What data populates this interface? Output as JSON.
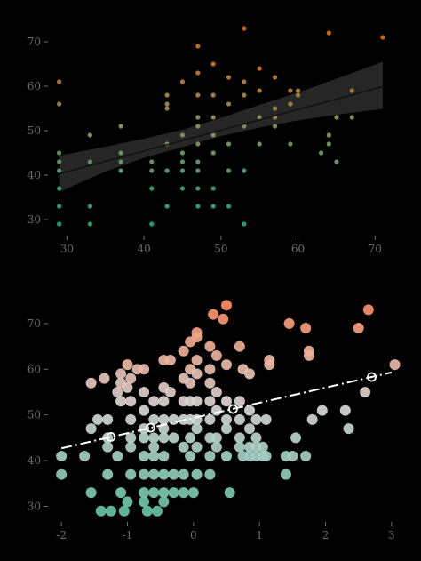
{
  "chart_data": [
    {
      "type": "scatter",
      "title": "",
      "xlabel": "",
      "ylabel": "",
      "xlim": [
        28,
        72.5
      ],
      "ylim": [
        27,
        75
      ],
      "x_ticks": [
        30,
        40,
        50,
        60,
        70
      ],
      "y_ticks": [
        30,
        40,
        50,
        60,
        70
      ],
      "grid": false,
      "color_scale": {
        "low": "#1b9e77",
        "mid": "#7f8c5a",
        "high": "#d95f02",
        "domain": [
          29,
          71
        ]
      },
      "trend": {
        "type": "linear",
        "x": [
          29,
          71
        ],
        "y": [
          40.3,
          59.9
        ],
        "color": "#111111"
      },
      "confidence_band": {
        "color": "#2a2a2a",
        "x": [
          29,
          35,
          40,
          45,
          50,
          55,
          60,
          65,
          71
        ],
        "lower": [
          36.2,
          40.8,
          43.9,
          46.3,
          48.8,
          50.7,
          52.3,
          53.6,
          54.9
        ],
        "upper": [
          44.4,
          46.4,
          48.2,
          50.2,
          52.9,
          55.8,
          58.6,
          61.7,
          65.5
        ]
      },
      "points": [
        {
          "x": 29,
          "y": 61
        },
        {
          "x": 29,
          "y": 56
        },
        {
          "x": 29,
          "y": 45
        },
        {
          "x": 29,
          "y": 43
        },
        {
          "x": 29,
          "y": 41
        },
        {
          "x": 29,
          "y": 37
        },
        {
          "x": 29,
          "y": 33
        },
        {
          "x": 29,
          "y": 29
        },
        {
          "x": 33,
          "y": 49
        },
        {
          "x": 33,
          "y": 43
        },
        {
          "x": 33,
          "y": 33
        },
        {
          "x": 33,
          "y": 29
        },
        {
          "x": 37,
          "y": 51
        },
        {
          "x": 37,
          "y": 45
        },
        {
          "x": 37,
          "y": 43
        },
        {
          "x": 37,
          "y": 41
        },
        {
          "x": 41,
          "y": 43
        },
        {
          "x": 41,
          "y": 41
        },
        {
          "x": 41,
          "y": 37
        },
        {
          "x": 41,
          "y": 29
        },
        {
          "x": 43,
          "y": 58
        },
        {
          "x": 43,
          "y": 56
        },
        {
          "x": 43,
          "y": 55
        },
        {
          "x": 43,
          "y": 47
        },
        {
          "x": 43,
          "y": 41
        },
        {
          "x": 43,
          "y": 33
        },
        {
          "x": 45,
          "y": 61
        },
        {
          "x": 45,
          "y": 49
        },
        {
          "x": 45,
          "y": 45
        },
        {
          "x": 45,
          "y": 43
        },
        {
          "x": 45,
          "y": 41
        },
        {
          "x": 45,
          "y": 37
        },
        {
          "x": 47,
          "y": 69
        },
        {
          "x": 47,
          "y": 63
        },
        {
          "x": 47,
          "y": 58
        },
        {
          "x": 47,
          "y": 53
        },
        {
          "x": 47,
          "y": 51
        },
        {
          "x": 47,
          "y": 47
        },
        {
          "x": 47,
          "y": 43
        },
        {
          "x": 47,
          "y": 41
        },
        {
          "x": 47,
          "y": 37
        },
        {
          "x": 47,
          "y": 33
        },
        {
          "x": 49,
          "y": 65
        },
        {
          "x": 49,
          "y": 58
        },
        {
          "x": 49,
          "y": 53
        },
        {
          "x": 49,
          "y": 49
        },
        {
          "x": 49,
          "y": 45
        },
        {
          "x": 49,
          "y": 37
        },
        {
          "x": 49,
          "y": 33
        },
        {
          "x": 51,
          "y": 62
        },
        {
          "x": 51,
          "y": 56
        },
        {
          "x": 51,
          "y": 47
        },
        {
          "x": 51,
          "y": 41
        },
        {
          "x": 51,
          "y": 33
        },
        {
          "x": 53,
          "y": 73
        },
        {
          "x": 53,
          "y": 61
        },
        {
          "x": 53,
          "y": 58
        },
        {
          "x": 53,
          "y": 51
        },
        {
          "x": 53,
          "y": 41
        },
        {
          "x": 53,
          "y": 29
        },
        {
          "x": 55,
          "y": 64
        },
        {
          "x": 55,
          "y": 59
        },
        {
          "x": 55,
          "y": 53
        },
        {
          "x": 55,
          "y": 47
        },
        {
          "x": 57,
          "y": 62
        },
        {
          "x": 57,
          "y": 55
        },
        {
          "x": 57,
          "y": 53
        },
        {
          "x": 57,
          "y": 51
        },
        {
          "x": 59,
          "y": 59
        },
        {
          "x": 59,
          "y": 56
        },
        {
          "x": 59,
          "y": 47
        },
        {
          "x": 60,
          "y": 59
        },
        {
          "x": 60,
          "y": 58
        },
        {
          "x": 63,
          "y": 45
        },
        {
          "x": 64,
          "y": 72
        },
        {
          "x": 64,
          "y": 49
        },
        {
          "x": 64,
          "y": 47
        },
        {
          "x": 65,
          "y": 53
        },
        {
          "x": 65,
          "y": 43
        },
        {
          "x": 67,
          "y": 59
        },
        {
          "x": 67,
          "y": 53
        },
        {
          "x": 71,
          "y": 71
        }
      ]
    },
    {
      "type": "scatter",
      "title": "",
      "xlabel": "",
      "ylabel": "",
      "xlim": [
        -2.15,
        3.15
      ],
      "ylim": [
        27,
        76
      ],
      "x_ticks": [
        -2,
        -1,
        0,
        1,
        2,
        3
      ],
      "y_ticks": [
        30,
        40,
        50,
        60,
        70
      ],
      "grid": false,
      "color_scale": {
        "low": "#66c2a5",
        "mid": "#d9d9d9",
        "high": "#fc8d62",
        "domain": [
          29,
          74
        ]
      },
      "trend": {
        "type": "linear",
        "style": "dash-dot",
        "x": [
          -2,
          3
        ],
        "y": [
          42.7,
          59.3
        ],
        "color": "#ffffff"
      },
      "trend_markers": [
        {
          "x": -1.25,
          "y": 45.2
        },
        {
          "x": -0.65,
          "y": 47.2
        },
        {
          "x": 0.6,
          "y": 51.3
        },
        {
          "x": 2.7,
          "y": 58.3
        }
      ],
      "points": [
        {
          "x": -2,
          "y": 41
        },
        {
          "x": -2,
          "y": 37
        },
        {
          "x": -1.65,
          "y": 41
        },
        {
          "x": -1.55,
          "y": 47
        },
        {
          "x": -1.45,
          "y": 49
        },
        {
          "x": -1.55,
          "y": 33
        },
        {
          "x": -1.4,
          "y": 29
        },
        {
          "x": -1.3,
          "y": 49
        },
        {
          "x": -1.3,
          "y": 45
        },
        {
          "x": -1.3,
          "y": 43
        },
        {
          "x": -1.3,
          "y": 37
        },
        {
          "x": -1.25,
          "y": 29
        },
        {
          "x": -1.55,
          "y": 57
        },
        {
          "x": -1.35,
          "y": 58
        },
        {
          "x": -1.1,
          "y": 59
        },
        {
          "x": -1.1,
          "y": 57
        },
        {
          "x": -1.15,
          "y": 55
        },
        {
          "x": -1.1,
          "y": 53
        },
        {
          "x": -1.15,
          "y": 41
        },
        {
          "x": -1.1,
          "y": 33
        },
        {
          "x": -1.0,
          "y": 61
        },
        {
          "x": -0.95,
          "y": 58
        },
        {
          "x": -1.0,
          "y": 56
        },
        {
          "x": -0.95,
          "y": 53
        },
        {
          "x": -0.95,
          "y": 49
        },
        {
          "x": -0.95,
          "y": 45
        },
        {
          "x": -0.95,
          "y": 43
        },
        {
          "x": -0.95,
          "y": 37
        },
        {
          "x": -1.0,
          "y": 31
        },
        {
          "x": -1.05,
          "y": 29
        },
        {
          "x": -0.75,
          "y": 60
        },
        {
          "x": -0.85,
          "y": 60
        },
        {
          "x": -0.75,
          "y": 55
        },
        {
          "x": -0.75,
          "y": 51
        },
        {
          "x": -0.75,
          "y": 47
        },
        {
          "x": -0.75,
          "y": 45
        },
        {
          "x": -0.75,
          "y": 41
        },
        {
          "x": -0.75,
          "y": 37
        },
        {
          "x": -0.75,
          "y": 33
        },
        {
          "x": -0.75,
          "y": 31
        },
        {
          "x": -0.7,
          "y": 29
        },
        {
          "x": -0.6,
          "y": 53
        },
        {
          "x": -0.6,
          "y": 49
        },
        {
          "x": -0.6,
          "y": 45
        },
        {
          "x": -0.6,
          "y": 43
        },
        {
          "x": -0.6,
          "y": 41
        },
        {
          "x": -0.6,
          "y": 37
        },
        {
          "x": -0.6,
          "y": 33
        },
        {
          "x": -0.55,
          "y": 29
        },
        {
          "x": -0.45,
          "y": 62
        },
        {
          "x": -0.45,
          "y": 56
        },
        {
          "x": -0.45,
          "y": 53
        },
        {
          "x": -0.45,
          "y": 49
        },
        {
          "x": -0.45,
          "y": 47
        },
        {
          "x": -0.45,
          "y": 45
        },
        {
          "x": -0.45,
          "y": 41
        },
        {
          "x": -0.45,
          "y": 37
        },
        {
          "x": -0.45,
          "y": 33
        },
        {
          "x": -0.45,
          "y": 31
        },
        {
          "x": -0.35,
          "y": 62
        },
        {
          "x": -0.35,
          "y": 55
        },
        {
          "x": -0.3,
          "y": 49
        },
        {
          "x": -0.3,
          "y": 45
        },
        {
          "x": -0.3,
          "y": 37
        },
        {
          "x": -0.3,
          "y": 33
        },
        {
          "x": -0.15,
          "y": 64
        },
        {
          "x": -0.15,
          "y": 58
        },
        {
          "x": -0.15,
          "y": 53
        },
        {
          "x": -0.15,
          "y": 49
        },
        {
          "x": -0.15,
          "y": 43
        },
        {
          "x": -0.15,
          "y": 37
        },
        {
          "x": -0.15,
          "y": 33
        },
        {
          "x": -0.05,
          "y": 66
        },
        {
          "x": -0.05,
          "y": 60
        },
        {
          "x": -0.05,
          "y": 57
        },
        {
          "x": -0.05,
          "y": 53
        },
        {
          "x": -0.05,
          "y": 49
        },
        {
          "x": -0.05,
          "y": 45
        },
        {
          "x": -0.05,
          "y": 41
        },
        {
          "x": 0.0,
          "y": 33
        },
        {
          "x": 0.05,
          "y": 68
        },
        {
          "x": 0.05,
          "y": 67
        },
        {
          "x": 0.05,
          "y": 62
        },
        {
          "x": 0.05,
          "y": 59
        },
        {
          "x": 0.05,
          "y": 53
        },
        {
          "x": 0.05,
          "y": 49
        },
        {
          "x": 0.05,
          "y": 47
        },
        {
          "x": 0.05,
          "y": 43
        },
        {
          "x": 0.05,
          "y": 37
        },
        {
          "x": 0.25,
          "y": 65
        },
        {
          "x": 0.25,
          "y": 60
        },
        {
          "x": 0.25,
          "y": 57
        },
        {
          "x": 0.25,
          "y": 53
        },
        {
          "x": 0.25,
          "y": 49
        },
        {
          "x": 0.25,
          "y": 45
        },
        {
          "x": 0.25,
          "y": 41
        },
        {
          "x": 0.25,
          "y": 37
        },
        {
          "x": 0.3,
          "y": 72
        },
        {
          "x": 0.35,
          "y": 63
        },
        {
          "x": 0.35,
          "y": 55
        },
        {
          "x": 0.35,
          "y": 51
        },
        {
          "x": 0.35,
          "y": 45
        },
        {
          "x": 0.35,
          "y": 43
        },
        {
          "x": 0.45,
          "y": 71
        },
        {
          "x": 0.5,
          "y": 74
        },
        {
          "x": 0.5,
          "y": 61
        },
        {
          "x": 0.5,
          "y": 53
        },
        {
          "x": 0.5,
          "y": 49
        },
        {
          "x": 0.5,
          "y": 47
        },
        {
          "x": 0.5,
          "y": 41
        },
        {
          "x": 0.55,
          "y": 33
        },
        {
          "x": 0.7,
          "y": 65
        },
        {
          "x": 0.75,
          "y": 60
        },
        {
          "x": 0.7,
          "y": 53
        },
        {
          "x": 0.7,
          "y": 49
        },
        {
          "x": 0.7,
          "y": 45
        },
        {
          "x": 0.7,
          "y": 43
        },
        {
          "x": 0.75,
          "y": 41
        },
        {
          "x": 0.85,
          "y": 59
        },
        {
          "x": 0.85,
          "y": 51
        },
        {
          "x": 0.85,
          "y": 47
        },
        {
          "x": 0.85,
          "y": 43
        },
        {
          "x": 0.85,
          "y": 41
        },
        {
          "x": 0.95,
          "y": 49
        },
        {
          "x": 0.95,
          "y": 45
        },
        {
          "x": 0.95,
          "y": 43
        },
        {
          "x": 0.95,
          "y": 41
        },
        {
          "x": 1.05,
          "y": 43
        },
        {
          "x": 1.05,
          "y": 41
        },
        {
          "x": 1.15,
          "y": 61
        },
        {
          "x": 1.15,
          "y": 62
        },
        {
          "x": 1.1,
          "y": 49
        },
        {
          "x": 1.1,
          "y": 41
        },
        {
          "x": 1.4,
          "y": 41
        },
        {
          "x": 1.4,
          "y": 37
        },
        {
          "x": 1.45,
          "y": 70
        },
        {
          "x": 1.55,
          "y": 45
        },
        {
          "x": 1.5,
          "y": 41
        },
        {
          "x": 1.7,
          "y": 69
        },
        {
          "x": 1.75,
          "y": 64
        },
        {
          "x": 1.75,
          "y": 63
        },
        {
          "x": 1.7,
          "y": 41
        },
        {
          "x": 1.8,
          "y": 49
        },
        {
          "x": 1.95,
          "y": 51
        },
        {
          "x": 2.3,
          "y": 51
        },
        {
          "x": 2.35,
          "y": 47
        },
        {
          "x": 2.6,
          "y": 55
        },
        {
          "x": 2.5,
          "y": 69
        },
        {
          "x": 2.65,
          "y": 73
        },
        {
          "x": 3.05,
          "y": 61
        }
      ]
    }
  ]
}
